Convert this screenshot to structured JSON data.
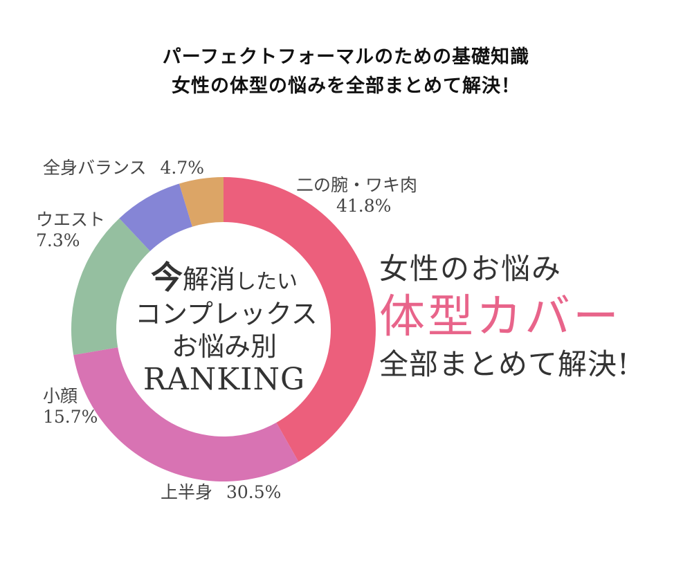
{
  "header": {
    "line1": "パーフェクトフォーマルのための基礎知識",
    "line2": "女性の体型の悩みを全部まとめて解決！"
  },
  "center": {
    "kanji_big": "今",
    "kanji_mid": "解消",
    "kana_small": "したい",
    "line2": "コンプレックス",
    "line3": "お悩み別",
    "line4": "RANKING"
  },
  "promo": {
    "line1": "女性のお悩み",
    "line2": "体型カバー",
    "line3": "全部まとめて解決!"
  },
  "chart_data": {
    "type": "pie",
    "donut": true,
    "start": "top",
    "direction": "clockwise",
    "categories": [
      "二の腕・ワキ肉",
      "上半身",
      "小顔",
      "ウエスト",
      "全身バランス"
    ],
    "values": [
      41.8,
      30.5,
      15.7,
      7.3,
      4.7
    ],
    "value_labels": [
      "41.8%",
      "30.5%",
      "15.7%",
      "7.3%",
      "4.7%"
    ],
    "colors": [
      "#ec5f7c",
      "#d873b3",
      "#95bfa0",
      "#8585d6",
      "#dca566"
    ],
    "title": ""
  }
}
